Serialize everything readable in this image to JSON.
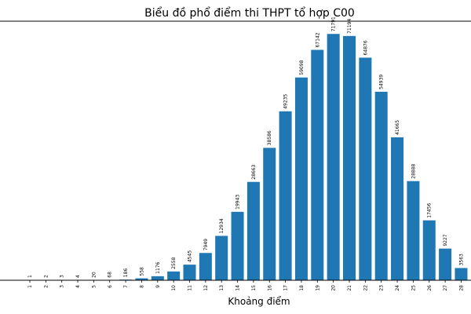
{
  "chart_data": {
    "type": "bar",
    "title": "Biểu đồ phổ điểm thi THPT tổ hợp C00",
    "xlabel": "Khoảng điểm",
    "ylabel": "",
    "categories": [
      "1",
      "2",
      "3",
      "4",
      "5",
      "6",
      "7",
      "8",
      "9",
      "10",
      "11",
      "12",
      "13",
      "14",
      "15",
      "16",
      "17",
      "18",
      "19",
      "20",
      "21",
      "22",
      "23",
      "24",
      "25",
      "26",
      "27",
      "28"
    ],
    "values": [
      1,
      2,
      3,
      4,
      20,
      68,
      186,
      558,
      1176,
      2558,
      4545,
      7949,
      12934,
      19943,
      28663,
      38586,
      49235,
      59098,
      67142,
      71791,
      71194,
      64876,
      54939,
      41665,
      28888,
      17456,
      9227,
      3563
    ],
    "ylim": [
      0,
      75500
    ],
    "colors": {
      "bar": "#1f77b4"
    },
    "grid": false
  }
}
